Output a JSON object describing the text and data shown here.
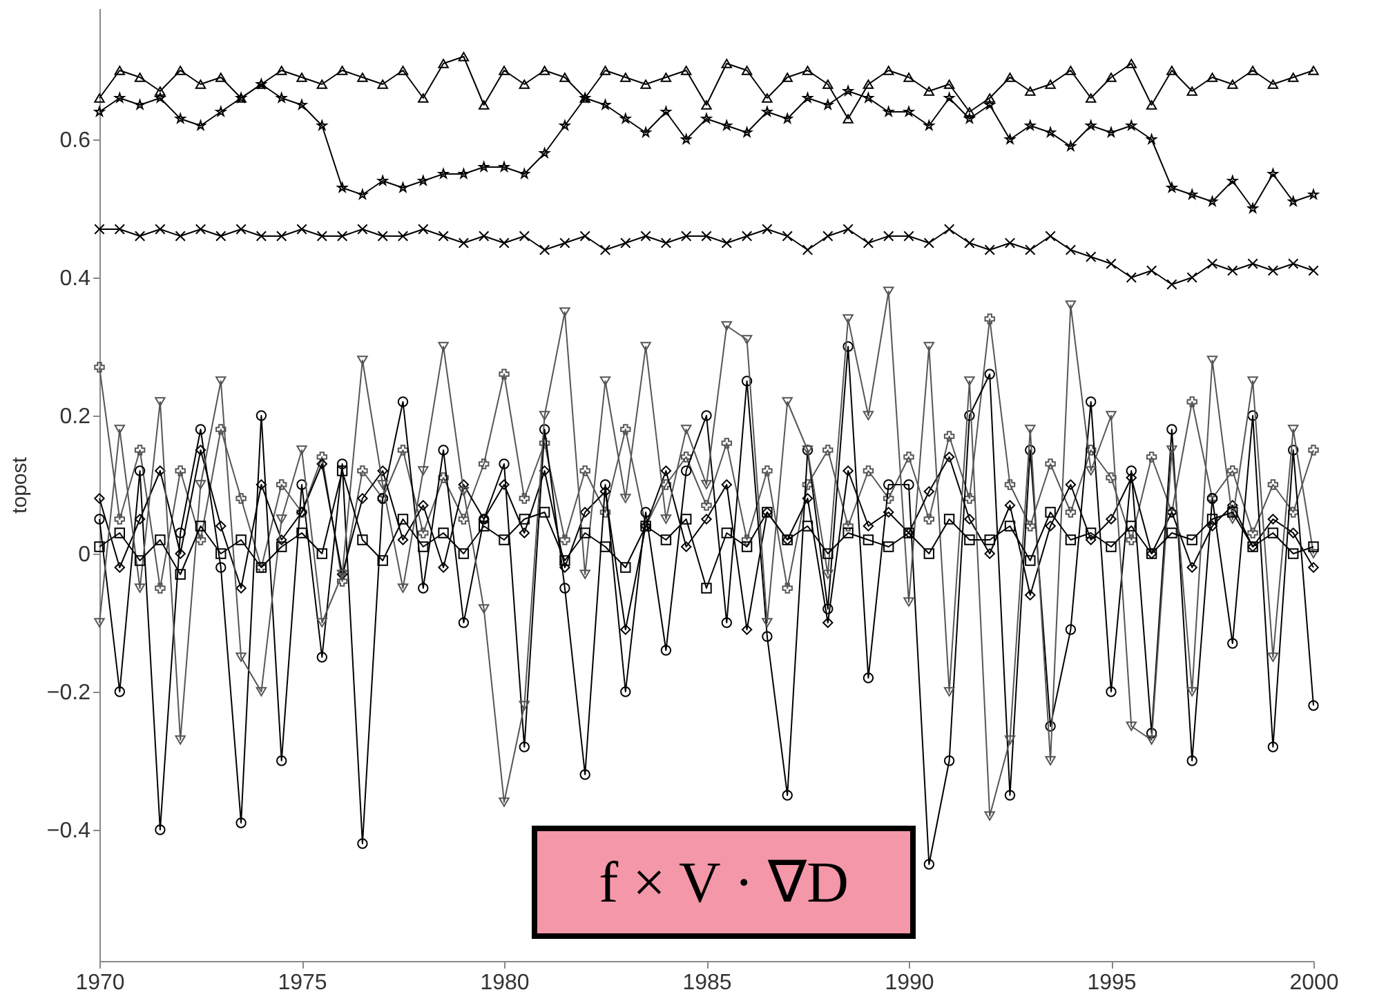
{
  "chart_data": {
    "type": "line",
    "ylabel": "topost",
    "xlim": [
      1970,
      2000
    ],
    "ylim": [
      -0.59,
      0.79
    ],
    "xticks": [
      1970,
      1975,
      1980,
      1985,
      1990,
      1995,
      2000
    ],
    "yticks": [
      {
        "value": -0.4,
        "label": "−0.4"
      },
      {
        "value": -0.2,
        "label": "−0.2"
      },
      0,
      0.2,
      0.4,
      0.6
    ],
    "grid": false,
    "line_style": "solid",
    "annotations": [
      "f × V · ∇D"
    ],
    "x": [
      1970,
      1970.5,
      1971,
      1971.5,
      1972,
      1972.5,
      1973,
      1973.5,
      1974,
      1974.5,
      1975,
      1975.5,
      1976,
      1976.5,
      1977,
      1977.5,
      1978,
      1978.5,
      1979,
      1979.5,
      1980,
      1980.5,
      1981,
      1981.5,
      1982,
      1982.5,
      1983,
      1983.5,
      1984,
      1984.5,
      1985,
      1985.5,
      1986,
      1986.5,
      1987,
      1987.5,
      1988,
      1988.5,
      1989,
      1989.5,
      1990,
      1990.5,
      1991,
      1991.5,
      1992,
      1992.5,
      1993,
      1993.5,
      1994,
      1994.5,
      1995,
      1995.5,
      1996,
      1996.5,
      1997,
      1997.5,
      1998,
      1998.5,
      1999,
      1999.5,
      2000
    ],
    "series": [
      {
        "color": "#000000",
        "marker": "triangle",
        "values": [
          0.66,
          0.7,
          0.69,
          0.67,
          0.7,
          0.68,
          0.69,
          0.66,
          0.68,
          0.7,
          0.69,
          0.68,
          0.7,
          0.69,
          0.68,
          0.7,
          0.66,
          0.71,
          0.72,
          0.65,
          0.7,
          0.68,
          0.7,
          0.69,
          0.66,
          0.7,
          0.69,
          0.68,
          0.69,
          0.7,
          0.65,
          0.71,
          0.7,
          0.66,
          0.69,
          0.7,
          0.68,
          0.63,
          0.68,
          0.7,
          0.69,
          0.67,
          0.68,
          0.64,
          0.66,
          0.69,
          0.67,
          0.68,
          0.7,
          0.66,
          0.69,
          0.71,
          0.65,
          0.7,
          0.67,
          0.69,
          0.68,
          0.7,
          0.68,
          0.69,
          0.7
        ]
      },
      {
        "color": "#000000",
        "marker": "star",
        "values": [
          0.64,
          0.66,
          0.65,
          0.66,
          0.63,
          0.62,
          0.64,
          0.66,
          0.68,
          0.66,
          0.65,
          0.62,
          0.53,
          0.52,
          0.54,
          0.53,
          0.54,
          0.55,
          0.55,
          0.56,
          0.56,
          0.55,
          0.58,
          0.62,
          0.66,
          0.65,
          0.63,
          0.61,
          0.64,
          0.6,
          0.63,
          0.62,
          0.61,
          0.64,
          0.63,
          0.66,
          0.65,
          0.67,
          0.66,
          0.64,
          0.64,
          0.62,
          0.66,
          0.63,
          0.65,
          0.6,
          0.62,
          0.61,
          0.59,
          0.62,
          0.61,
          0.62,
          0.6,
          0.53,
          0.52,
          0.51,
          0.54,
          0.5,
          0.55,
          0.51,
          0.52
        ]
      },
      {
        "color": "#000000",
        "marker": "x",
        "values": [
          0.47,
          0.47,
          0.46,
          0.47,
          0.46,
          0.47,
          0.46,
          0.47,
          0.46,
          0.46,
          0.47,
          0.46,
          0.46,
          0.47,
          0.46,
          0.46,
          0.47,
          0.46,
          0.45,
          0.46,
          0.45,
          0.46,
          0.44,
          0.45,
          0.46,
          0.44,
          0.45,
          0.46,
          0.45,
          0.46,
          0.46,
          0.45,
          0.46,
          0.47,
          0.46,
          0.44,
          0.46,
          0.47,
          0.45,
          0.46,
          0.46,
          0.45,
          0.47,
          0.45,
          0.44,
          0.45,
          0.44,
          0.46,
          0.44,
          0.43,
          0.42,
          0.4,
          0.41,
          0.39,
          0.4,
          0.42,
          0.41,
          0.42,
          0.41,
          0.42,
          0.41
        ]
      },
      {
        "color": "#555555",
        "marker": "plus",
        "values": [
          0.27,
          0.05,
          0.15,
          -0.05,
          0.12,
          0.02,
          0.18,
          0.08,
          -0.02,
          0.1,
          0.06,
          0.14,
          -0.04,
          0.12,
          0.08,
          0.15,
          0.03,
          0.11,
          0.05,
          0.13,
          0.26,
          0.08,
          0.16,
          0.02,
          0.12,
          0.06,
          0.18,
          0.04,
          0.1,
          0.14,
          0.07,
          0.16,
          0.02,
          0.12,
          -0.05,
          0.1,
          0.15,
          0.04,
          0.12,
          0.08,
          0.14,
          0.05,
          0.17,
          0.08,
          0.34,
          0.1,
          0.04,
          0.13,
          0.06,
          0.15,
          0.11,
          0.02,
          0.14,
          0.06,
          0.22,
          0.08,
          0.12,
          0.03,
          0.1,
          0.06,
          0.15
        ]
      },
      {
        "color": "#000000",
        "marker": "circle",
        "values": [
          0.05,
          -0.2,
          0.12,
          -0.4,
          0.03,
          0.18,
          -0.02,
          -0.39,
          0.2,
          -0.3,
          0.1,
          -0.15,
          0.13,
          -0.42,
          0.08,
          0.22,
          -0.05,
          0.15,
          -0.1,
          0.05,
          0.13,
          -0.28,
          0.18,
          -0.05,
          -0.32,
          0.1,
          -0.2,
          0.06,
          -0.14,
          0.12,
          0.2,
          -0.1,
          0.25,
          -0.12,
          -0.35,
          0.15,
          -0.08,
          0.3,
          -0.18,
          0.1,
          0.1,
          -0.45,
          -0.3,
          0.2,
          0.26,
          -0.35,
          0.15,
          -0.25,
          -0.11,
          0.22,
          -0.2,
          0.12,
          -0.26,
          0.18,
          -0.3,
          0.08,
          -0.13,
          0.2,
          -0.28,
          0.15,
          -0.22
        ]
      },
      {
        "color": "#000000",
        "marker": "diamond",
        "values": [
          0.08,
          -0.02,
          0.05,
          0.12,
          0.0,
          0.15,
          0.04,
          -0.05,
          0.1,
          0.02,
          0.06,
          0.13,
          -0.03,
          0.08,
          0.12,
          0.02,
          0.07,
          -0.02,
          0.1,
          0.05,
          0.1,
          0.03,
          0.12,
          -0.02,
          0.06,
          0.09,
          -0.11,
          0.04,
          0.12,
          0.01,
          0.05,
          0.1,
          -0.11,
          0.06,
          0.02,
          0.08,
          -0.1,
          0.12,
          0.04,
          0.06,
          0.03,
          0.09,
          0.14,
          0.05,
          0.0,
          0.07,
          -0.06,
          0.04,
          0.1,
          0.02,
          0.05,
          0.11,
          0.0,
          0.06,
          -0.02,
          0.04,
          0.07,
          0.01,
          0.05,
          0.03,
          -0.02
        ]
      },
      {
        "color": "#555555",
        "marker": "triangle-down",
        "values": [
          -0.1,
          0.18,
          -0.05,
          0.22,
          -0.27,
          0.1,
          0.25,
          -0.15,
          -0.2,
          0.05,
          0.15,
          -0.1,
          -0.03,
          0.28,
          0.1,
          -0.05,
          0.12,
          0.3,
          0.09,
          -0.08,
          -0.36,
          -0.22,
          0.2,
          0.35,
          -0.03,
          0.25,
          0.08,
          0.3,
          0.05,
          0.18,
          0.1,
          0.33,
          0.31,
          -0.1,
          0.22,
          0.15,
          -0.03,
          0.34,
          0.2,
          0.38,
          -0.07,
          0.3,
          -0.2,
          0.25,
          -0.38,
          -0.27,
          0.18,
          -0.3,
          0.36,
          0.12,
          0.2,
          -0.25,
          -0.27,
          0.15,
          -0.2,
          0.28,
          0.05,
          0.25,
          -0.15,
          0.18,
          0.0
        ]
      },
      {
        "color": "#000000",
        "marker": "square",
        "values": [
          0.01,
          0.03,
          -0.01,
          0.02,
          -0.03,
          0.04,
          0.0,
          0.02,
          -0.02,
          0.01,
          0.03,
          0.0,
          0.12,
          0.02,
          -0.01,
          0.05,
          0.01,
          0.03,
          0.0,
          0.04,
          0.02,
          0.05,
          0.06,
          -0.01,
          0.03,
          0.01,
          -0.02,
          0.04,
          0.02,
          0.05,
          -0.05,
          0.03,
          0.01,
          0.06,
          0.02,
          0.04,
          0.0,
          0.03,
          0.02,
          0.01,
          0.03,
          0.0,
          0.05,
          0.02,
          0.02,
          0.04,
          -0.01,
          0.06,
          0.02,
          0.03,
          0.01,
          0.04,
          0.0,
          0.03,
          0.02,
          0.05,
          0.06,
          0.01,
          0.03,
          0.0,
          0.01
        ]
      }
    ]
  }
}
